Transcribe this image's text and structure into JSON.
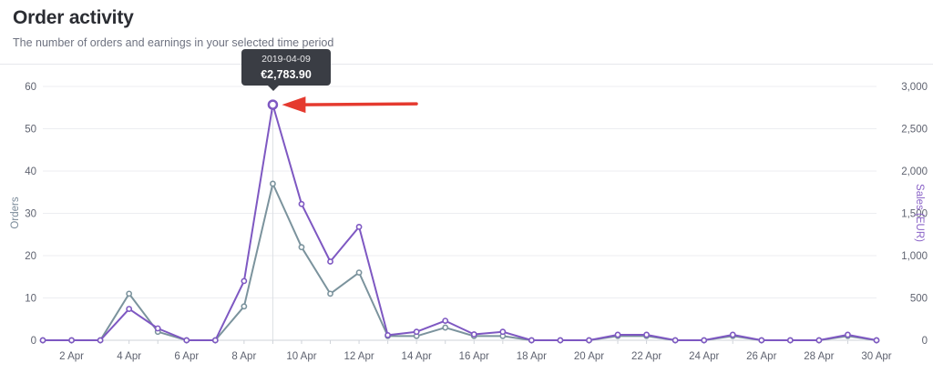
{
  "header": {
    "title": "Order activity",
    "subtitle": "The number of orders and earnings in your selected time period"
  },
  "tooltip": {
    "date": "2019-04-09",
    "value": "€2,783.90"
  },
  "colors": {
    "orders": "#7b939d",
    "sales": "#7e58c2",
    "arrow": "#e53a2f",
    "grid": "#eceef1"
  },
  "chart_data": {
    "type": "line",
    "x": [
      "1 Apr",
      "2 Apr",
      "3 Apr",
      "4 Apr",
      "5 Apr",
      "6 Apr",
      "7 Apr",
      "8 Apr",
      "9 Apr",
      "10 Apr",
      "11 Apr",
      "12 Apr",
      "13 Apr",
      "14 Apr",
      "15 Apr",
      "16 Apr",
      "17 Apr",
      "18 Apr",
      "19 Apr",
      "20 Apr",
      "21 Apr",
      "22 Apr",
      "23 Apr",
      "24 Apr",
      "25 Apr",
      "26 Apr",
      "27 Apr",
      "28 Apr",
      "29 Apr",
      "30 Apr"
    ],
    "x_tick_labels": [
      "2 Apr",
      "4 Apr",
      "6 Apr",
      "8 Apr",
      "10 Apr",
      "12 Apr",
      "14 Apr",
      "16 Apr",
      "18 Apr",
      "20 Apr",
      "22 Apr",
      "24 Apr",
      "26 Apr",
      "28 Apr",
      "30 Apr"
    ],
    "series": [
      {
        "axis": "left",
        "values": [
          0,
          0,
          0,
          11,
          2,
          0,
          0,
          8,
          37,
          22,
          11,
          16,
          1,
          1,
          3,
          1,
          1,
          0,
          0,
          0,
          1,
          1,
          0,
          0,
          1,
          0,
          0,
          0,
          1,
          0
        ]
      },
      {
        "axis": "right",
        "values": [
          0,
          0,
          0,
          370,
          140,
          0,
          0,
          700,
          2783.9,
          1610,
          930,
          1340,
          60,
          100,
          230,
          70,
          100,
          0,
          0,
          0,
          65,
          65,
          0,
          0,
          65,
          0,
          0,
          0,
          65,
          0
        ]
      }
    ],
    "ylabel": "Orders",
    "y2label": "Sales (EUR)",
    "ylim": [
      0,
      60
    ],
    "y2lim": [
      0,
      3000
    ],
    "y_ticks": [
      "0",
      "10",
      "20",
      "30",
      "40",
      "50",
      "60"
    ],
    "y2_ticks": [
      "0",
      "500",
      "1,000",
      "1,500",
      "2,000",
      "2,500",
      "3,000"
    ],
    "grid": true,
    "highlight_index": 8
  }
}
